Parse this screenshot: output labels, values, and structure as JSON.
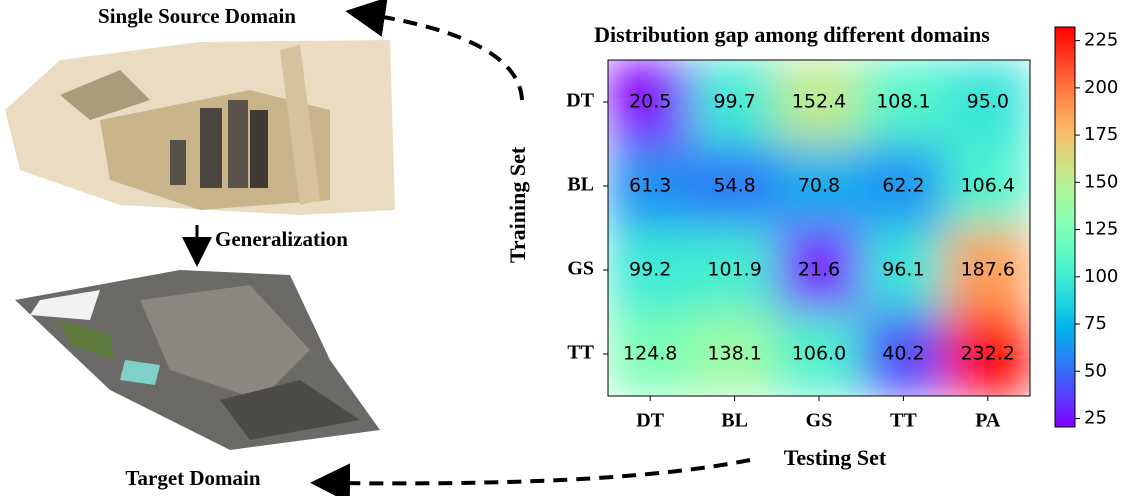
{
  "chart_data": {
    "type": "heatmap",
    "title": "Distribution gap among different domains",
    "x_label": "Testing Set",
    "y_label": "Training Set",
    "x_categories": [
      "DT",
      "BL",
      "GS",
      "TT",
      "PA"
    ],
    "y_categories": [
      "DT",
      "BL",
      "GS",
      "TT"
    ],
    "values": [
      [
        20.5,
        99.7,
        152.4,
        108.1,
        95.0
      ],
      [
        61.3,
        54.8,
        70.8,
        62.2,
        106.4
      ],
      [
        99.2,
        101.9,
        21.6,
        96.1,
        187.6
      ],
      [
        124.8,
        138.1,
        106.0,
        40.2,
        232.2
      ]
    ],
    "value_labels": [
      [
        "20.5",
        "99.7",
        "152.4",
        "108.1",
        "95.0"
      ],
      [
        "61.3",
        "54.8",
        "70.8",
        "62.2",
        "106.4"
      ],
      [
        "99.2",
        "101.9",
        "21.6",
        "96.1",
        "187.6"
      ],
      [
        "124.8",
        "138.1",
        "106.0",
        "40.2",
        "232.2"
      ]
    ],
    "colormap": "rainbow",
    "clim": [
      20.5,
      232.2
    ],
    "colorbar_ticks": [
      25,
      50,
      75,
      100,
      125,
      150,
      175,
      200,
      225
    ]
  },
  "figure": {
    "source_label": "Single Source Domain",
    "generalization_label": "Generalization",
    "target_label": "Target Domain"
  }
}
